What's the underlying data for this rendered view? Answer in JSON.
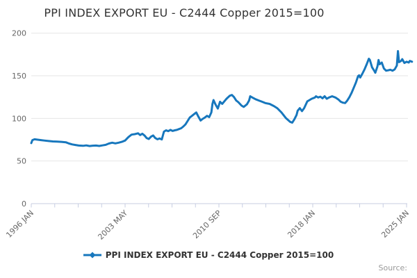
{
  "header": {
    "title": "PPI INDEX EXPORT EU - C2444 Copper 2015=100"
  },
  "legend": {
    "items": [
      {
        "label": "PPI INDEX EXPORT EU - C2444 Copper 2015=100",
        "color": "#1777bd",
        "marker": "diamond"
      }
    ]
  },
  "footer": {
    "source_label": "Source:"
  },
  "colors": {
    "line": "#1777bd",
    "grid": "#e6e6e6",
    "axis": "#c7cee2",
    "title_text": "#333333",
    "axis_text": "#666666",
    "legend_text": "#333333",
    "source_text": "#999999",
    "background": "#ffffff"
  },
  "chart_data": {
    "type": "line",
    "title": "PPI INDEX EXPORT EU - C2444 Copper 2015=100",
    "xlabel": "",
    "ylabel": "",
    "grid": "horizontal",
    "legend_position": "bottom",
    "ylim": [
      0,
      200
    ],
    "y_ticks": [
      0,
      50,
      100,
      150,
      200
    ],
    "x_range_months": [
      "1996-01",
      "2025-01"
    ],
    "x_tick_labels": [
      "1996 JAN",
      "2003 MAY",
      "2010 SEP",
      "2018 JAN",
      "2025 JAN"
    ],
    "x_minor_ticks_between_labels": 3,
    "series": [
      {
        "name": "PPI INDEX EXPORT EU - C2444 Copper 2015=100",
        "color": "#1777bd",
        "points": [
          [
            "1996-01",
            71
          ],
          [
            "1996-02",
            74.5
          ],
          [
            "1996-04",
            75.5
          ],
          [
            "1996-07",
            75
          ],
          [
            "1996-10",
            74.5
          ],
          [
            "1997-01",
            74
          ],
          [
            "1997-05",
            73.5
          ],
          [
            "1997-09",
            73
          ],
          [
            "1998-01",
            72.8
          ],
          [
            "1998-05",
            72.5
          ],
          [
            "1998-09",
            72
          ],
          [
            "1998-12",
            70.5
          ],
          [
            "1999-03",
            69.5
          ],
          [
            "1999-06",
            68.8
          ],
          [
            "1999-09",
            68.2
          ],
          [
            "2000-01",
            67.8
          ],
          [
            "2000-04",
            68.3
          ],
          [
            "2000-07",
            67.6
          ],
          [
            "2000-10",
            68
          ],
          [
            "2001-01",
            68.2
          ],
          [
            "2001-04",
            67.7
          ],
          [
            "2001-07",
            68.3
          ],
          [
            "2001-10",
            69
          ],
          [
            "2002-01",
            70.5
          ],
          [
            "2002-04",
            71.5
          ],
          [
            "2002-07",
            70.7
          ],
          [
            "2002-10",
            71.5
          ],
          [
            "2003-01",
            72.5
          ],
          [
            "2003-04",
            74
          ],
          [
            "2003-07",
            78
          ],
          [
            "2003-10",
            81
          ],
          [
            "2004-01",
            81.5
          ],
          [
            "2004-04",
            82.5
          ],
          [
            "2004-06",
            80.5
          ],
          [
            "2004-08",
            82
          ],
          [
            "2004-10",
            80
          ],
          [
            "2004-12",
            77
          ],
          [
            "2005-02",
            75.8
          ],
          [
            "2005-04",
            78.5
          ],
          [
            "2005-06",
            80
          ],
          [
            "2005-08",
            77
          ],
          [
            "2005-10",
            75.5
          ],
          [
            "2005-12",
            76.5
          ],
          [
            "2006-02",
            75.3
          ],
          [
            "2006-04",
            84.5
          ],
          [
            "2006-06",
            86
          ],
          [
            "2006-08",
            85
          ],
          [
            "2006-10",
            86.5
          ],
          [
            "2006-12",
            85.3
          ],
          [
            "2007-02",
            86
          ],
          [
            "2007-04",
            86.5
          ],
          [
            "2007-06",
            87.5
          ],
          [
            "2007-08",
            88.5
          ],
          [
            "2007-10",
            90.5
          ],
          [
            "2007-12",
            93
          ],
          [
            "2008-02",
            97
          ],
          [
            "2008-04",
            101
          ],
          [
            "2008-06",
            103
          ],
          [
            "2008-08",
            105
          ],
          [
            "2008-10",
            107
          ],
          [
            "2008-12",
            102
          ],
          [
            "2009-02",
            97.5
          ],
          [
            "2009-04",
            99.5
          ],
          [
            "2009-06",
            101
          ],
          [
            "2009-08",
            103
          ],
          [
            "2009-10",
            101.5
          ],
          [
            "2009-12",
            107
          ],
          [
            "2010-01",
            117
          ],
          [
            "2010-02",
            121.5
          ],
          [
            "2010-04",
            116
          ],
          [
            "2010-06",
            111.5
          ],
          [
            "2010-08",
            119.5
          ],
          [
            "2010-10",
            117
          ],
          [
            "2010-12",
            120
          ],
          [
            "2011-02",
            123
          ],
          [
            "2011-05",
            126.5
          ],
          [
            "2011-07",
            127.5
          ],
          [
            "2011-09",
            125
          ],
          [
            "2011-11",
            121
          ],
          [
            "2012-01",
            119
          ],
          [
            "2012-04",
            115
          ],
          [
            "2012-06",
            113.5
          ],
          [
            "2012-09",
            116.5
          ],
          [
            "2012-11",
            121
          ],
          [
            "2012-12",
            126
          ],
          [
            "2013-02",
            124.5
          ],
          [
            "2013-05",
            122.5
          ],
          [
            "2013-08",
            121
          ],
          [
            "2013-11",
            119.5
          ],
          [
            "2014-02",
            118
          ],
          [
            "2014-06",
            117
          ],
          [
            "2014-10",
            114.5
          ],
          [
            "2015-01",
            112
          ],
          [
            "2015-05",
            107
          ],
          [
            "2015-09",
            100.5
          ],
          [
            "2016-01",
            96
          ],
          [
            "2016-03",
            95
          ],
          [
            "2016-05",
            99
          ],
          [
            "2016-07",
            104
          ],
          [
            "2016-08",
            109
          ],
          [
            "2016-10",
            112
          ],
          [
            "2016-12",
            108.5
          ],
          [
            "2017-02",
            112
          ],
          [
            "2017-05",
            120
          ],
          [
            "2017-07",
            121.5
          ],
          [
            "2017-09",
            123
          ],
          [
            "2017-12",
            124.5
          ],
          [
            "2018-01",
            126
          ],
          [
            "2018-03",
            124.5
          ],
          [
            "2018-05",
            125.5
          ],
          [
            "2018-07",
            123.5
          ],
          [
            "2018-09",
            126
          ],
          [
            "2018-11",
            123
          ],
          [
            "2019-01",
            124.5
          ],
          [
            "2019-04",
            126
          ],
          [
            "2019-07",
            124.5
          ],
          [
            "2019-10",
            122
          ],
          [
            "2019-12",
            119.5
          ],
          [
            "2020-02",
            118.5
          ],
          [
            "2020-04",
            118
          ],
          [
            "2020-06",
            121
          ],
          [
            "2020-08",
            125
          ],
          [
            "2020-10",
            130
          ],
          [
            "2020-12",
            136
          ],
          [
            "2021-02",
            142
          ],
          [
            "2021-04",
            149.5
          ],
          [
            "2021-05",
            150.5
          ],
          [
            "2021-06",
            148
          ],
          [
            "2021-08",
            152.5
          ],
          [
            "2021-10",
            157.5
          ],
          [
            "2021-12",
            163.5
          ],
          [
            "2022-02",
            170
          ],
          [
            "2022-03",
            168.5
          ],
          [
            "2022-05",
            160
          ],
          [
            "2022-07",
            156
          ],
          [
            "2022-08",
            153.5
          ],
          [
            "2022-10",
            161
          ],
          [
            "2022-11",
            168.5
          ],
          [
            "2022-12",
            163.5
          ],
          [
            "2023-02",
            165.5
          ],
          [
            "2023-04",
            158.5
          ],
          [
            "2023-06",
            156
          ],
          [
            "2023-08",
            156.5
          ],
          [
            "2023-10",
            157
          ],
          [
            "2023-12",
            156
          ],
          [
            "2024-02",
            157.5
          ],
          [
            "2024-04",
            162
          ],
          [
            "2024-05",
            179
          ],
          [
            "2024-06",
            166
          ],
          [
            "2024-08",
            167.5
          ],
          [
            "2024-09",
            169.5
          ],
          [
            "2024-11",
            165
          ],
          [
            "2025-01",
            166.5
          ],
          [
            "2025-03",
            165.5
          ],
          [
            "2025-04",
            167.5
          ],
          [
            "2025-06",
            166.5
          ]
        ]
      }
    ]
  }
}
